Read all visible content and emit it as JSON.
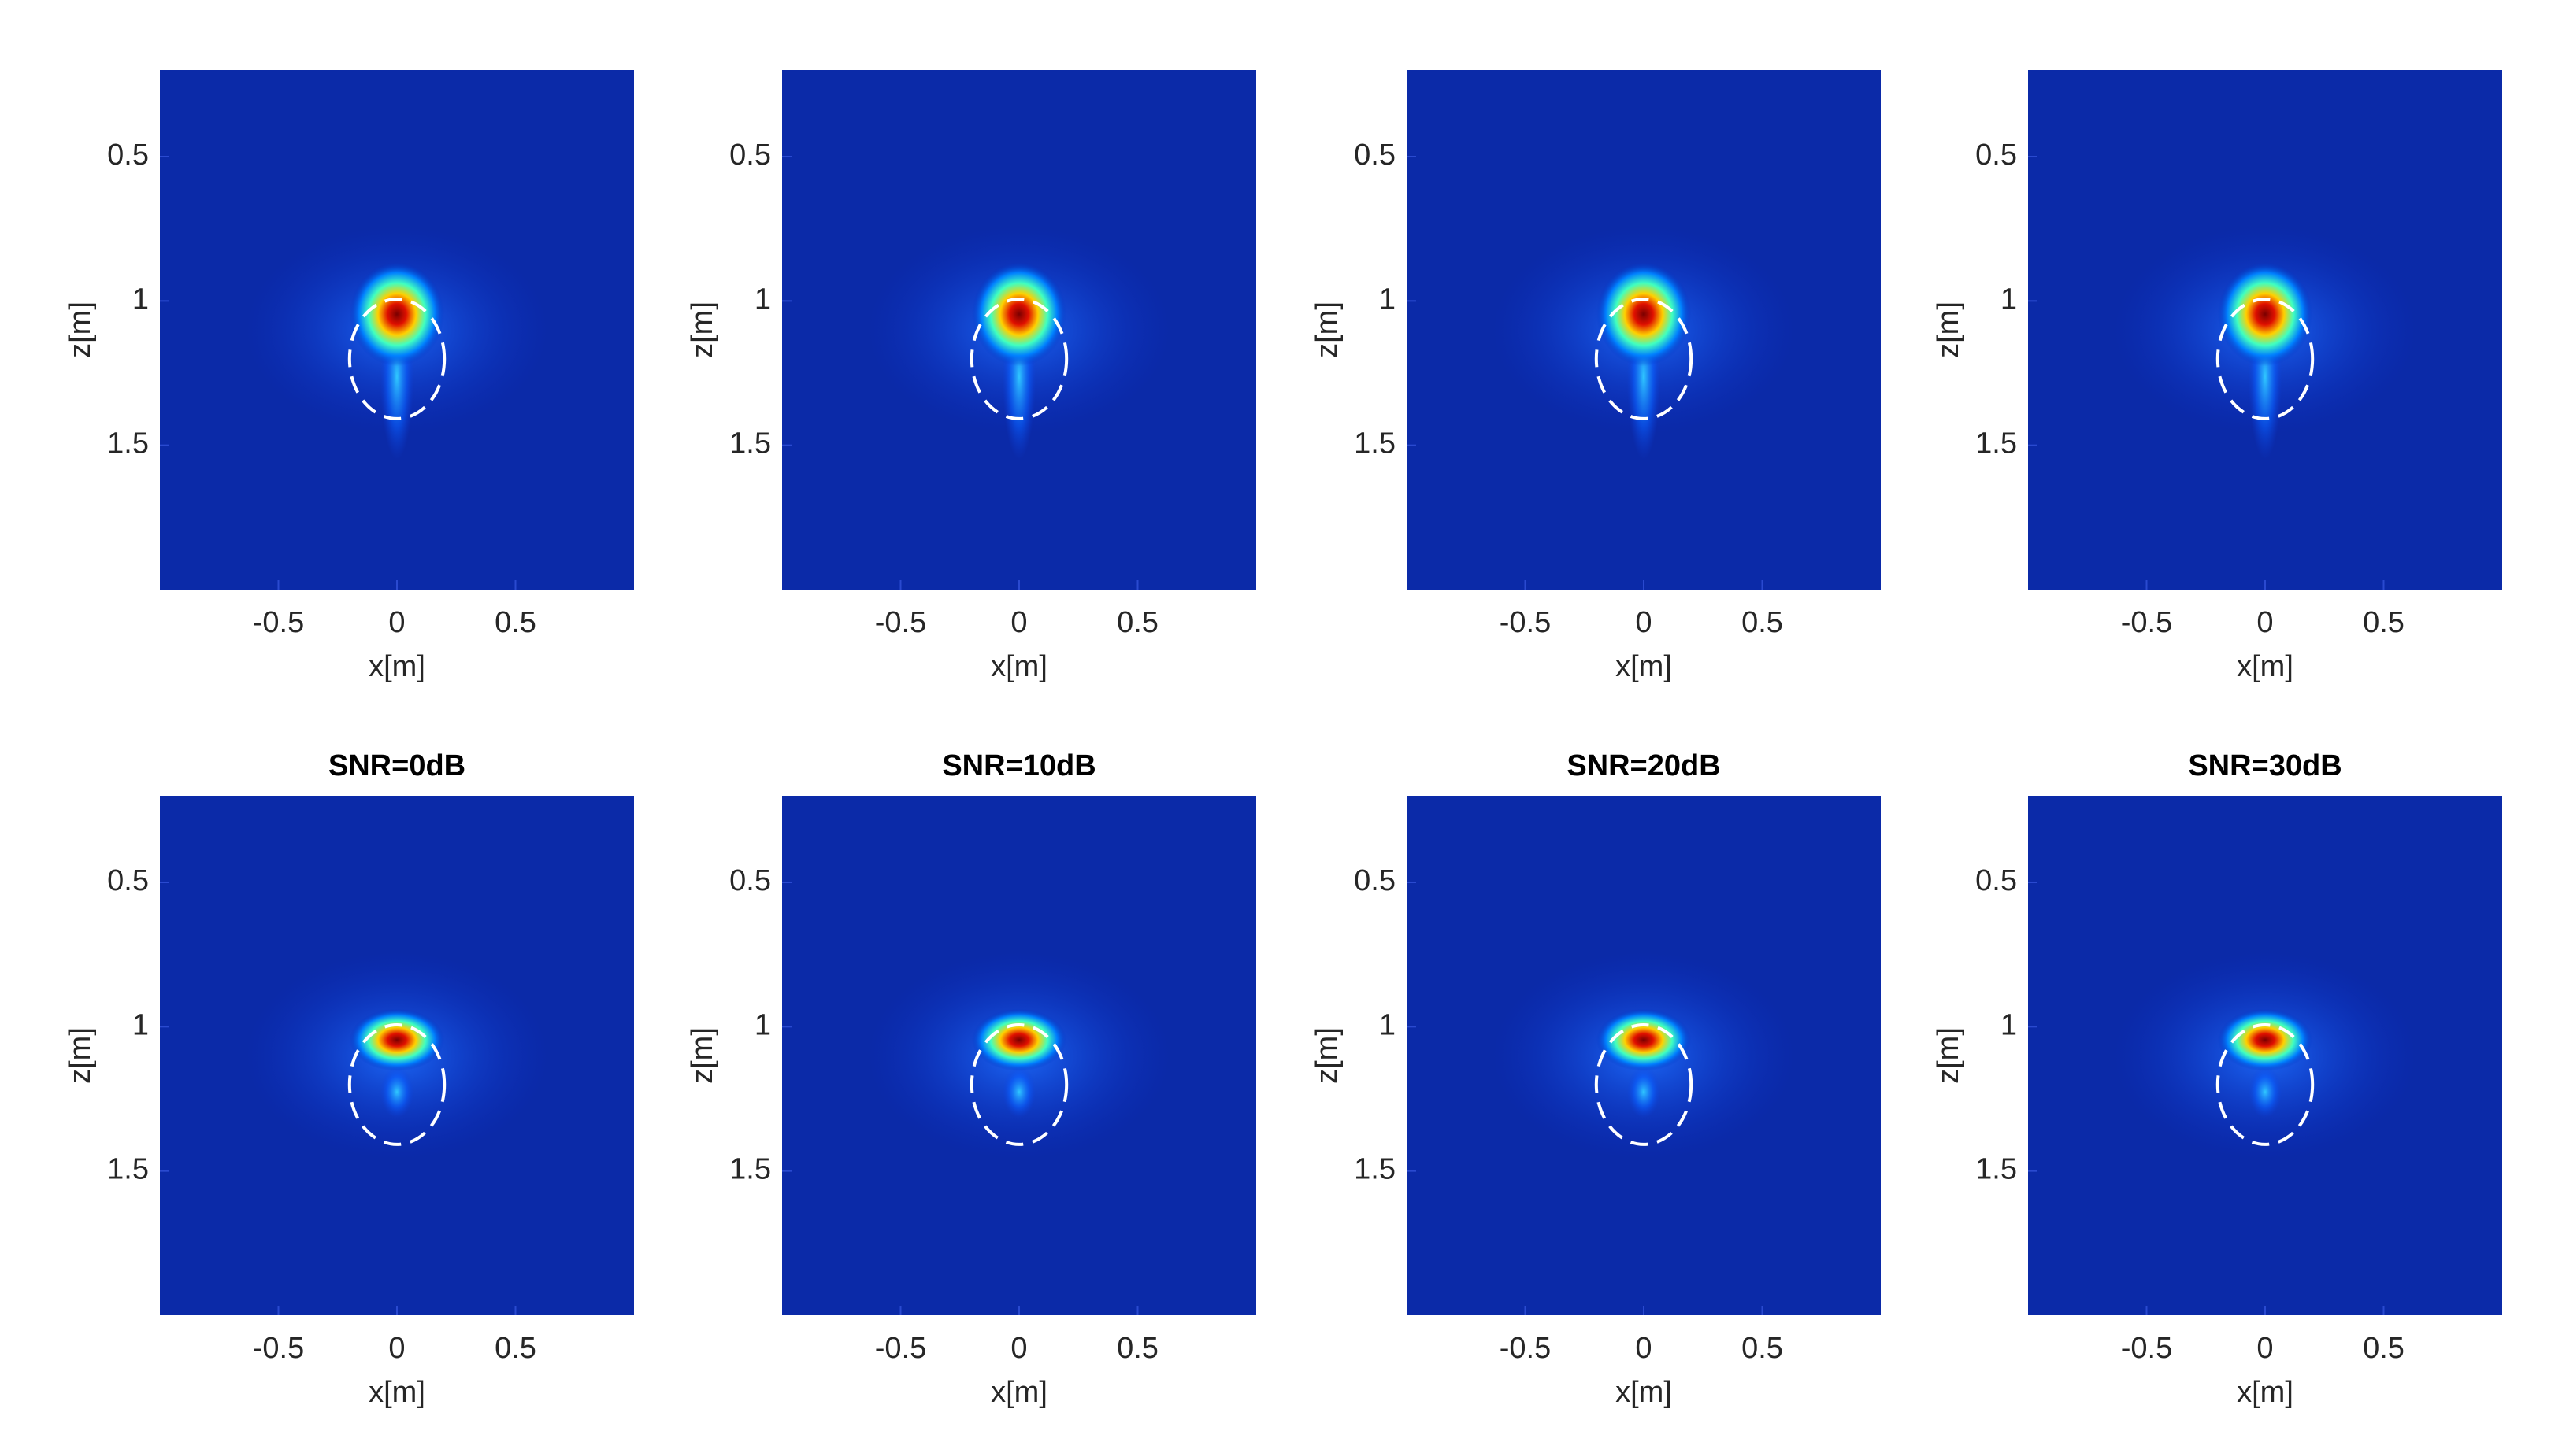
{
  "chart_data": [
    {
      "type": "heatmap",
      "xlabel": "x[m]",
      "ylabel": "z[m]",
      "xlim": [
        -1,
        1
      ],
      "ylim": [
        0.2,
        2
      ],
      "y_reversed": true,
      "xticks": [
        -0.5,
        0,
        0.5
      ],
      "yticks": [
        0.5,
        1,
        1.5
      ]
    },
    {
      "type": "heatmap",
      "xlabel": "x[m]",
      "ylabel": "z[m]",
      "xlim": [
        -1,
        1
      ],
      "ylim": [
        0.2,
        2
      ],
      "y_reversed": true,
      "xticks": [
        -0.5,
        0,
        0.5
      ],
      "yticks": [
        0.5,
        1,
        1.5
      ]
    },
    {
      "type": "heatmap",
      "xlabel": "x[m]",
      "ylabel": "z[m]",
      "xlim": [
        -1,
        1
      ],
      "ylim": [
        0.2,
        2
      ],
      "y_reversed": true,
      "xticks": [
        -0.5,
        0,
        0.5
      ],
      "yticks": [
        0.5,
        1,
        1.5
      ]
    },
    {
      "type": "heatmap",
      "xlabel": "x[m]",
      "ylabel": "z[m]",
      "xlim": [
        -1,
        1
      ],
      "ylim": [
        0.2,
        2
      ],
      "y_reversed": true,
      "xticks": [
        -0.5,
        0,
        0.5
      ],
      "yticks": [
        0.5,
        1,
        1.5
      ]
    },
    {
      "type": "heatmap",
      "title": "SNR=0dB",
      "xlabel": "x[m]",
      "ylabel": "z[m]",
      "xlim": [
        -1,
        1
      ],
      "ylim": [
        0.2,
        2
      ],
      "y_reversed": true,
      "xticks": [
        -0.5,
        0,
        0.5
      ],
      "yticks": [
        0.5,
        1,
        1.5
      ]
    },
    {
      "type": "heatmap",
      "title": "SNR=10dB",
      "xlabel": "x[m]",
      "ylabel": "z[m]",
      "xlim": [
        -1,
        1
      ],
      "ylim": [
        0.2,
        2
      ],
      "y_reversed": true,
      "xticks": [
        -0.5,
        0,
        0.5
      ],
      "yticks": [
        0.5,
        1,
        1.5
      ]
    },
    {
      "type": "heatmap",
      "title": "SNR=20dB",
      "xlabel": "x[m]",
      "ylabel": "z[m]",
      "xlim": [
        -1,
        1
      ],
      "ylim": [
        0.2,
        2
      ],
      "y_reversed": true,
      "xticks": [
        -0.5,
        0,
        0.5
      ],
      "yticks": [
        0.5,
        1,
        1.5
      ]
    },
    {
      "type": "heatmap",
      "title": "SNR=30dB",
      "xlabel": "x[m]",
      "ylabel": "z[m]",
      "xlim": [
        -1,
        1
      ],
      "ylim": [
        0.2,
        2
      ],
      "y_reversed": true,
      "xticks": [
        -0.5,
        0,
        0.5
      ],
      "yticks": [
        0.5,
        1,
        1.5
      ]
    }
  ]
}
